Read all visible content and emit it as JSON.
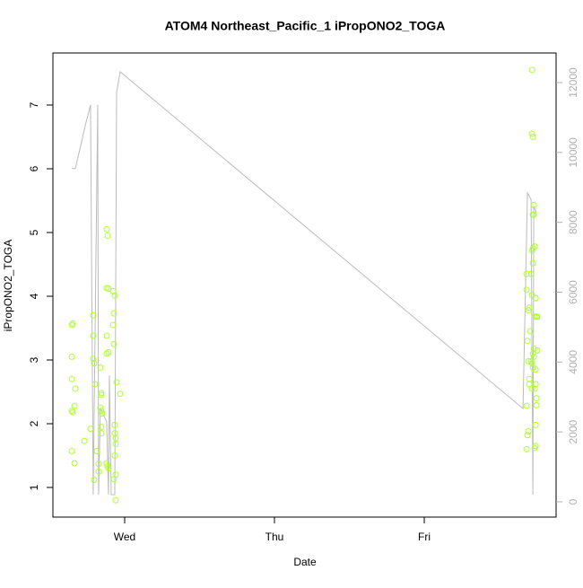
{
  "chart_data": {
    "type": "scatter",
    "title": "ATOM4 Northeast_Pacific_1 iPropONO2_TOGA",
    "x_label": "Date",
    "y_label": "iPropONO2_TOGA",
    "xlim": [
      2.521,
      5.88
    ],
    "xticks": [
      {
        "value": 3,
        "label": "Wed"
      },
      {
        "value": 4,
        "label": "Thu"
      },
      {
        "value": 5,
        "label": "Fri"
      }
    ],
    "ylim": [
      0.535,
      7.817
    ],
    "yticks": [
      1,
      2,
      3,
      4,
      5,
      6,
      7
    ],
    "y2lim": [
      -437,
      12848
    ],
    "y2ticks": [
      0,
      2000,
      4000,
      6000,
      8000,
      10000,
      12000
    ],
    "series": [
      {
        "type": "scatter",
        "color": "#adff2f",
        "x": [
          2.647,
          2.653,
          2.647,
          2.647,
          2.647,
          2.653,
          2.671,
          2.665,
          2.647,
          2.665,
          2.731,
          2.772,
          2.79,
          2.79,
          2.79,
          2.796,
          2.802,
          2.796,
          2.814,
          2.826,
          2.826,
          2.838,
          2.844,
          2.844,
          2.838,
          2.844,
          2.85,
          2.844,
          2.844,
          2.88,
          2.886,
          2.88,
          2.892,
          2.88,
          2.88,
          2.892,
          2.88,
          2.892,
          2.886,
          2.922,
          2.934,
          2.928,
          2.922,
          2.928,
          2.946,
          2.97,
          2.934,
          2.934,
          2.94,
          2.94,
          2.934,
          2.94,
          2.928,
          2.94,
          5.719,
          5.719,
          5.725,
          5.683,
          5.683,
          5.713,
          5.719,
          5.743,
          5.725,
          5.731,
          5.731,
          5.719,
          5.725,
          5.737,
          5.725,
          5.701,
          5.695,
          5.689,
          5.707,
          5.737,
          5.749,
          5.754,
          5.725,
          5.731,
          5.754,
          5.695,
          5.713,
          5.719,
          5.731,
          5.701,
          5.701,
          5.719,
          5.737,
          5.743,
          5.725,
          5.743,
          5.749,
          5.749,
          5.683,
          5.695,
          5.689,
          5.743,
          5.743,
          5.683,
          5.737
        ],
        "values": [
          3.55,
          3.57,
          3.05,
          2.7,
          2.2,
          2.18,
          2.55,
          2.28,
          1.57,
          1.38,
          1.73,
          1.92,
          3.7,
          3.38,
          3.02,
          2.95,
          2.62,
          1.12,
          1.57,
          1.25,
          1.37,
          2.88,
          2.48,
          2.45,
          2.25,
          2.2,
          2.16,
          1.95,
          1.85,
          5.05,
          4.95,
          4.13,
          4.12,
          3.38,
          3.1,
          3.12,
          1.38,
          1.3,
          1.33,
          4.08,
          4.01,
          3.73,
          3.55,
          3.25,
          2.65,
          2.47,
          1.98,
          1.85,
          1.77,
          1.68,
          1.5,
          1.2,
          1.13,
          0.8,
          7.55,
          6.55,
          6.5,
          4.35,
          4.1,
          4.35,
          4.02,
          3.97,
          5.28,
          5.28,
          5.43,
          4.72,
          4.75,
          4.78,
          4.52,
          3.82,
          3.78,
          3.3,
          3.45,
          3.68,
          3.68,
          3.68,
          3.1,
          3.18,
          3.15,
          2.98,
          2.98,
          2.95,
          3.05,
          2.7,
          2.62,
          2.55,
          2.55,
          2.62,
          2.88,
          2.85,
          2.4,
          2.29,
          2.28,
          1.88,
          1.82,
          1.98,
          1.65,
          1.6,
          1.62
        ]
      },
      {
        "type": "line",
        "axis": "y2",
        "color": "#bbbbbb",
        "x": [
          2.647,
          2.671,
          2.737,
          2.772,
          2.79,
          2.82,
          2.826,
          2.838,
          2.88,
          2.892,
          2.898,
          2.91,
          2.934,
          2.946,
          2.97,
          5.659,
          5.689,
          5.713,
          5.725,
          5.731,
          5.749
        ],
        "values": [
          9540,
          9540,
          10770,
          11360,
          205,
          11360,
          205,
          2670,
          2290,
          205,
          3620,
          205,
          205,
          11720,
          12310,
          2670,
          8840,
          8660,
          205,
          8460,
          8280
        ]
      }
    ]
  }
}
